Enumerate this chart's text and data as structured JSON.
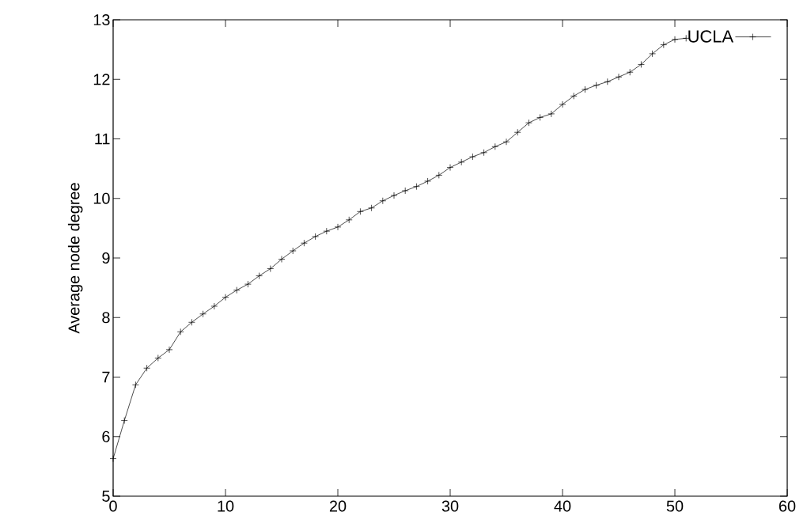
{
  "chart_data": {
    "type": "line",
    "ylabel": "Average node degree",
    "legend": "top right",
    "marker": "cross",
    "line_style": "solid",
    "grid": false,
    "xlim": [
      0,
      60
    ],
    "xticks": [
      0,
      10,
      20,
      30,
      40,
      50,
      60
    ],
    "ylim": [
      5,
      13
    ],
    "yticks": [
      5,
      6,
      7,
      8,
      9,
      10,
      11,
      12,
      13
    ],
    "x": [
      0,
      1,
      2,
      3,
      4,
      5,
      6,
      7,
      8,
      9,
      10,
      11,
      12,
      13,
      14,
      15,
      16,
      17,
      18,
      19,
      20,
      21,
      22,
      23,
      24,
      25,
      26,
      27,
      28,
      29,
      30,
      31,
      32,
      33,
      34,
      35,
      36,
      37,
      38,
      39,
      40,
      41,
      42,
      43,
      44,
      45,
      46,
      47,
      48,
      49,
      50,
      51
    ],
    "series": [
      {
        "name": "UCLA",
        "color": "#000000",
        "values": [
          5.63,
          6.27,
          6.87,
          7.15,
          7.32,
          7.46,
          7.76,
          7.92,
          8.06,
          8.19,
          8.34,
          8.46,
          8.56,
          8.7,
          8.82,
          8.98,
          9.12,
          9.25,
          9.36,
          9.45,
          9.52,
          9.64,
          9.78,
          9.84,
          9.96,
          10.05,
          10.13,
          10.2,
          10.29,
          10.39,
          10.52,
          10.61,
          10.7,
          10.77,
          10.87,
          10.95,
          11.11,
          11.27,
          11.36,
          11.42,
          11.58,
          11.72,
          11.83,
          11.9,
          11.96,
          12.04,
          12.12,
          12.25,
          12.43,
          12.58,
          12.67,
          12.69
        ]
      }
    ]
  }
}
